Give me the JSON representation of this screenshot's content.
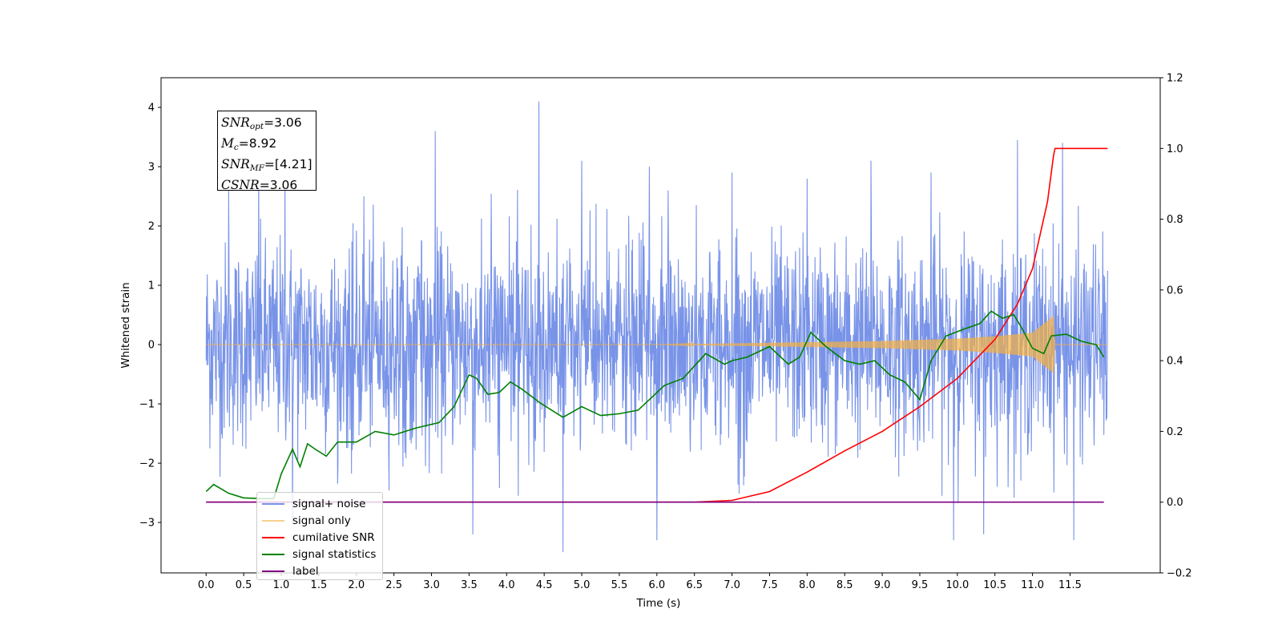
{
  "chart_data": {
    "type": "line",
    "xlabel": "Time (s)",
    "ylabel_left": "Whitened strain",
    "ylabel_right": "",
    "xlim": [
      -0.6,
      12.7
    ],
    "ylim_left": [
      -3.85,
      4.5
    ],
    "ylim_right": [
      -0.2,
      1.2
    ],
    "x_ticks": [
      "0.0",
      "0.5",
      "1.0",
      "1.5",
      "2.0",
      "2.5",
      "3.0",
      "3.5",
      "4.0",
      "4.5",
      "5.0",
      "5.5",
      "6.0",
      "6.5",
      "7.0",
      "7.5",
      "8.0",
      "8.5",
      "9.0",
      "9.5",
      "10.0",
      "10.5",
      "11.0",
      "11.5"
    ],
    "y_ticks_left": [
      "−3",
      "−2",
      "−1",
      "0",
      "1",
      "2",
      "3",
      "4"
    ],
    "y_ticks_right": [
      "−0.2",
      "0.0",
      "0.2",
      "0.4",
      "0.6",
      "0.8",
      "1.0",
      "1.2"
    ],
    "grid": false,
    "legend_placement": "lower-left",
    "annotation": {
      "snr_opt": {
        "sym": "SNR",
        "sub": "opt",
        "value": "=3.06"
      },
      "mc": {
        "sym": "M",
        "sub": "c",
        "value": "=8.92"
      },
      "snr_mf": {
        "sym": "SNR",
        "sub": "MF",
        "value": "=[4.21]"
      },
      "csnr": {
        "sym": "CSNR",
        "value": "=3.06"
      }
    },
    "series": [
      {
        "name": "signal+ noise",
        "axis": "left",
        "color": "#7893e8",
        "x_range": [
          0.0,
          12.0
        ],
        "envelope_upper": 1.6,
        "envelope_lower": -1.6,
        "peaks": [
          [
            0.3,
            2.6
          ],
          [
            0.7,
            3.1
          ],
          [
            1.05,
            2.9
          ],
          [
            2.1,
            2.5
          ],
          [
            3.05,
            3.6
          ],
          [
            3.55,
            2.6
          ],
          [
            4.43,
            4.1
          ],
          [
            4.75,
            -3.5
          ],
          [
            5.0,
            3.1
          ],
          [
            5.9,
            3.0
          ],
          [
            6.15,
            2.6
          ],
          [
            7.0,
            2.9
          ],
          [
            8.0,
            2.8
          ],
          [
            8.85,
            3.1
          ],
          [
            9.65,
            2.9
          ],
          [
            9.95,
            -3.3
          ],
          [
            10.35,
            -3.2
          ],
          [
            10.8,
            3.45
          ],
          [
            11.4,
            3.4
          ],
          [
            11.55,
            -3.3
          ],
          [
            3.55,
            -3.2
          ],
          [
            1.15,
            -3.0
          ],
          [
            6.0,
            -3.3
          ]
        ]
      },
      {
        "name": "signal only",
        "axis": "left",
        "color": "#f5b041",
        "x": [
          0.0,
          6.0,
          7.0,
          8.0,
          9.0,
          9.5,
          10.0,
          10.5,
          11.0,
          11.28,
          11.3,
          12.0
        ],
        "amplitude": [
          0.0,
          0.0,
          0.02,
          0.04,
          0.06,
          0.08,
          0.1,
          0.14,
          0.2,
          0.48,
          0.0,
          0.0
        ]
      },
      {
        "name": "cumilative SNR",
        "axis": "right",
        "color": "#ff0000",
        "x": [
          0.0,
          6.5,
          7.0,
          7.5,
          8.0,
          8.5,
          9.0,
          9.5,
          10.0,
          10.5,
          10.8,
          11.0,
          11.2,
          11.28,
          11.3,
          12.0
        ],
        "values": [
          0.0,
          0.0,
          0.005,
          0.03,
          0.085,
          0.145,
          0.2,
          0.27,
          0.35,
          0.46,
          0.56,
          0.66,
          0.85,
          0.98,
          1.0,
          1.0
        ]
      },
      {
        "name": "signal statistics",
        "axis": "right",
        "color": "#008000",
        "x": [
          0.0,
          0.1,
          0.3,
          0.5,
          0.75,
          0.9,
          1.0,
          1.15,
          1.25,
          1.35,
          1.45,
          1.6,
          1.75,
          2.0,
          2.25,
          2.5,
          2.8,
          3.1,
          3.3,
          3.5,
          3.6,
          3.75,
          3.9,
          4.05,
          4.2,
          4.45,
          4.75,
          5.0,
          5.25,
          5.5,
          5.75,
          5.95,
          6.1,
          6.35,
          6.65,
          6.9,
          7.0,
          7.2,
          7.5,
          7.75,
          7.9,
          8.05,
          8.25,
          8.5,
          8.7,
          8.9,
          9.1,
          9.3,
          9.5,
          9.65,
          9.85,
          10.1,
          10.3,
          10.45,
          10.6,
          10.75,
          10.85,
          11.0,
          11.15,
          11.25,
          11.45,
          11.65,
          11.85,
          11.95
        ],
        "values": [
          0.03,
          0.05,
          0.025,
          0.012,
          0.01,
          0.01,
          0.08,
          0.15,
          0.1,
          0.165,
          0.15,
          0.13,
          0.17,
          0.17,
          0.2,
          0.19,
          0.21,
          0.225,
          0.27,
          0.36,
          0.35,
          0.305,
          0.31,
          0.34,
          0.32,
          0.28,
          0.24,
          0.27,
          0.245,
          0.25,
          0.26,
          0.3,
          0.33,
          0.35,
          0.42,
          0.39,
          0.4,
          0.41,
          0.44,
          0.39,
          0.41,
          0.48,
          0.44,
          0.4,
          0.39,
          0.4,
          0.36,
          0.34,
          0.29,
          0.4,
          0.47,
          0.49,
          0.505,
          0.54,
          0.52,
          0.53,
          0.495,
          0.435,
          0.42,
          0.47,
          0.475,
          0.455,
          0.445,
          0.41
        ]
      },
      {
        "name": "label",
        "axis": "right",
        "color": "#800080",
        "x": [
          0.0,
          11.95
        ],
        "values": [
          0.0,
          0.0
        ]
      }
    ],
    "legend_overlap_text": "Cumilative SNR"
  }
}
